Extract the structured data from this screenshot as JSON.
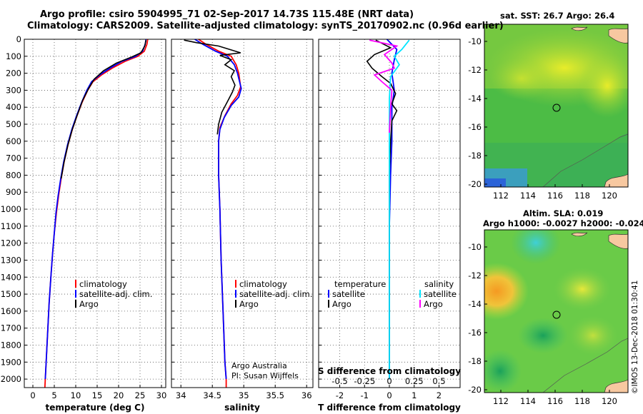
{
  "title_line1": "Argo profile: csiro 5904995_71 02-Sep-2017 14.73S 115.48E (NRT data)",
  "title_line2": "Climatology: CARS2009. Satellite-adjusted climatology: synTS_20170902.nc (0.96d earlier)",
  "watermark": "©IMOS 13-Dec-2018 01:30:41",
  "credit_line1": "Argo Australia",
  "credit_line2": "PI: Susan Wijffels",
  "map_top_title": "sat. SST: 26.7 Argo: 26.4",
  "map_bottom_title1": "Altim. SLA: 0.019",
  "map_bottom_title2": "Argo h1000: -0.0027 h2000: -0.024",
  "colors": {
    "climatology": "#ff0000",
    "satellite": "#0000ff",
    "argo": "#000000",
    "sat_salinity": "#00e5ff",
    "argo_salinity": "#ff00ff",
    "land": "#f7c8a0"
  },
  "chart_data": [
    {
      "type": "line",
      "xlabel": "temperature (deg C)",
      "ylabel": "",
      "xlim": [
        -2,
        31
      ],
      "ylim": [
        2050,
        0
      ],
      "xticks": [
        0,
        5,
        10,
        15,
        20,
        25,
        30
      ],
      "yticks": [
        0,
        100,
        200,
        300,
        400,
        500,
        600,
        700,
        800,
        900,
        1000,
        1100,
        1200,
        1300,
        1400,
        1500,
        1600,
        1700,
        1800,
        1900,
        2000
      ],
      "legend": [
        "climatology",
        "satellite-adj. clim.",
        "Argo"
      ],
      "series": [
        {
          "name": "climatology",
          "color": "#ff0000",
          "points": [
            [
              26.8,
              0
            ],
            [
              26.6,
              30
            ],
            [
              26.0,
              70
            ],
            [
              24.5,
              100
            ],
            [
              21.5,
              130
            ],
            [
              18.5,
              170
            ],
            [
              16.0,
              210
            ],
            [
              14.0,
              250
            ],
            [
              12.8,
              300
            ],
            [
              11.5,
              370
            ],
            [
              10.3,
              450
            ],
            [
              9.2,
              530
            ],
            [
              8.2,
              620
            ],
            [
              7.3,
              720
            ],
            [
              6.6,
              820
            ],
            [
              6.0,
              920
            ],
            [
              5.5,
              1020
            ],
            [
              5.0,
              1140
            ],
            [
              4.6,
              1260
            ],
            [
              4.2,
              1400
            ],
            [
              3.8,
              1550
            ],
            [
              3.5,
              1700
            ],
            [
              3.2,
              1850
            ],
            [
              2.9,
              2000
            ],
            [
              2.8,
              2050
            ]
          ]
        },
        {
          "name": "satellite-adj. clim.",
          "color": "#0000ff",
          "points": [
            [
              26.4,
              0
            ],
            [
              26.2,
              30
            ],
            [
              25.6,
              70
            ],
            [
              24.0,
              100
            ],
            [
              20.8,
              130
            ],
            [
              18.0,
              170
            ],
            [
              15.6,
              210
            ],
            [
              13.7,
              250
            ],
            [
              12.6,
              300
            ],
            [
              11.4,
              370
            ],
            [
              10.2,
              450
            ],
            [
              9.1,
              530
            ],
            [
              8.1,
              620
            ],
            [
              7.2,
              720
            ],
            [
              6.5,
              820
            ],
            [
              5.9,
              920
            ],
            [
              5.4,
              1020
            ],
            [
              5.0,
              1140
            ],
            [
              4.6,
              1260
            ],
            [
              4.2,
              1400
            ],
            [
              3.8,
              1550
            ],
            [
              3.5,
              1700
            ],
            [
              3.2,
              1850
            ],
            [
              2.9,
              2000
            ]
          ]
        },
        {
          "name": "Argo",
          "color": "#000000",
          "points": [
            [
              26.4,
              5
            ],
            [
              26.1,
              40
            ],
            [
              25.2,
              80
            ],
            [
              23.0,
              105
            ],
            [
              19.5,
              140
            ],
            [
              16.5,
              185
            ],
            [
              14.3,
              235
            ],
            [
              13.0,
              290
            ],
            [
              11.6,
              360
            ],
            [
              10.3,
              450
            ],
            [
              9.2,
              530
            ],
            [
              8.2,
              620
            ],
            [
              7.3,
              720
            ],
            [
              6.6,
              820
            ]
          ]
        }
      ]
    },
    {
      "type": "line",
      "xlabel": "salinity",
      "ylabel": "",
      "xlim": [
        33.85,
        36.1
      ],
      "ylim": [
        2050,
        0
      ],
      "xticks": [
        34,
        34.5,
        35,
        35.5,
        36
      ],
      "legend": [
        "climatology",
        "satellite-adj. clim.",
        "Argo"
      ],
      "series": [
        {
          "name": "climatology",
          "color": "#ff0000",
          "points": [
            [
              34.28,
              0
            ],
            [
              34.4,
              30
            ],
            [
              34.6,
              70
            ],
            [
              34.8,
              100
            ],
            [
              34.88,
              150
            ],
            [
              34.92,
              200
            ],
            [
              34.95,
              280
            ],
            [
              34.9,
              330
            ],
            [
              34.8,
              380
            ],
            [
              34.7,
              450
            ],
            [
              34.62,
              520
            ],
            [
              34.6,
              600
            ],
            [
              34.6,
              800
            ],
            [
              34.62,
              1000
            ],
            [
              34.64,
              1300
            ],
            [
              34.67,
              1600
            ],
            [
              34.7,
              1900
            ],
            [
              34.72,
              2000
            ],
            [
              34.72,
              2050
            ]
          ]
        },
        {
          "name": "satellite-adj. clim.",
          "color": "#0000ff",
          "points": [
            [
              34.22,
              0
            ],
            [
              34.35,
              30
            ],
            [
              34.55,
              70
            ],
            [
              34.74,
              100
            ],
            [
              34.85,
              150
            ],
            [
              34.9,
              200
            ],
            [
              34.96,
              290
            ],
            [
              34.92,
              340
            ],
            [
              34.8,
              390
            ],
            [
              34.69,
              460
            ],
            [
              34.62,
              530
            ],
            [
              34.6,
              600
            ],
            [
              34.6,
              800
            ],
            [
              34.62,
              1000
            ],
            [
              34.64,
              1300
            ],
            [
              34.67,
              1600
            ],
            [
              34.7,
              1900
            ],
            [
              34.72,
              2000
            ]
          ]
        },
        {
          "name": "Argo",
          "color": "#000000",
          "points": [
            [
              34.05,
              5
            ],
            [
              34.25,
              20
            ],
            [
              34.6,
              40
            ],
            [
              34.95,
              80
            ],
            [
              34.62,
              95
            ],
            [
              34.8,
              120
            ],
            [
              34.7,
              150
            ],
            [
              34.85,
              185
            ],
            [
              34.8,
              220
            ],
            [
              34.86,
              270
            ],
            [
              34.82,
              310
            ],
            [
              34.75,
              360
            ],
            [
              34.65,
              430
            ],
            [
              34.6,
              500
            ],
            [
              34.58,
              560
            ]
          ]
        }
      ]
    },
    {
      "type": "line",
      "xlabel": "T difference from climatology",
      "x2label": "S difference from climatology",
      "xlim": [
        -2.85,
        2.85
      ],
      "ylim": [
        2050,
        0
      ],
      "xticks": [
        -2,
        -1,
        0,
        1,
        2
      ],
      "x2ticks": [
        "-0.5",
        "-0.25",
        "0",
        "0.25",
        "0.5"
      ],
      "legend": [
        "temperature",
        "satellite",
        "Argo",
        "salinity",
        "satellite",
        "Argo"
      ],
      "series": [
        {
          "name": "satellite",
          "color": "#0000ff",
          "points": [
            [
              -0.1,
              0
            ],
            [
              0.3,
              60
            ],
            [
              0.2,
              120
            ],
            [
              0.1,
              200
            ],
            [
              0.2,
              300
            ],
            [
              0.1,
              400
            ],
            [
              0.1,
              600
            ],
            [
              0.05,
              800
            ],
            [
              0.0,
              1100
            ],
            [
              0.0,
              1500
            ],
            [
              0.0,
              2000
            ]
          ]
        },
        {
          "name": "Argo",
          "color": "#000000",
          "points": [
            [
              -0.55,
              5
            ],
            [
              0.05,
              50
            ],
            [
              -0.6,
              90
            ],
            [
              -0.9,
              130
            ],
            [
              -0.7,
              170
            ],
            [
              -0.3,
              220
            ],
            [
              0.05,
              260
            ],
            [
              0.25,
              320
            ],
            [
              0.1,
              380
            ],
            [
              0.3,
              420
            ],
            [
              0.1,
              480
            ],
            [
              0.05,
              600
            ],
            [
              0.0,
              800
            ],
            [
              0.0,
              1200
            ],
            [
              0.0,
              1600
            ],
            [
              0.0,
              1950
            ]
          ]
        },
        {
          "name": "salinity satellite",
          "color": "#00e5ff",
          "points": [
            [
              0.8,
              5
            ],
            [
              0.5,
              60
            ],
            [
              0.2,
              100
            ],
            [
              0.4,
              150
            ],
            [
              0.05,
              220
            ],
            [
              0.0,
              350
            ],
            [
              0.0,
              600
            ],
            [
              0.0,
              1000
            ],
            [
              0.0,
              1500
            ],
            [
              0.0,
              2000
            ]
          ]
        },
        {
          "name": "salinity Argo",
          "color": "#ff00ff",
          "points": [
            [
              -0.8,
              5
            ],
            [
              0.3,
              40
            ],
            [
              -0.2,
              90
            ],
            [
              0.1,
              140
            ],
            [
              0.2,
              170
            ],
            [
              -0.6,
              210
            ],
            [
              -0.3,
              250
            ],
            [
              0.1,
              300
            ],
            [
              0.05,
              400
            ],
            [
              0.0,
              550
            ]
          ]
        }
      ]
    }
  ],
  "maps": [
    {
      "lon_ticks": [
        "112",
        "114",
        "116",
        "118",
        "120"
      ],
      "lat_ticks": [
        "-10",
        "-12",
        "-14",
        "-16",
        "-18",
        "-20"
      ]
    },
    {
      "lon_ticks": [
        "112",
        "114",
        "116",
        "118",
        "120"
      ],
      "lat_ticks": [
        "-10",
        "-12",
        "-14",
        "-16",
        "-18",
        "-20"
      ]
    }
  ]
}
